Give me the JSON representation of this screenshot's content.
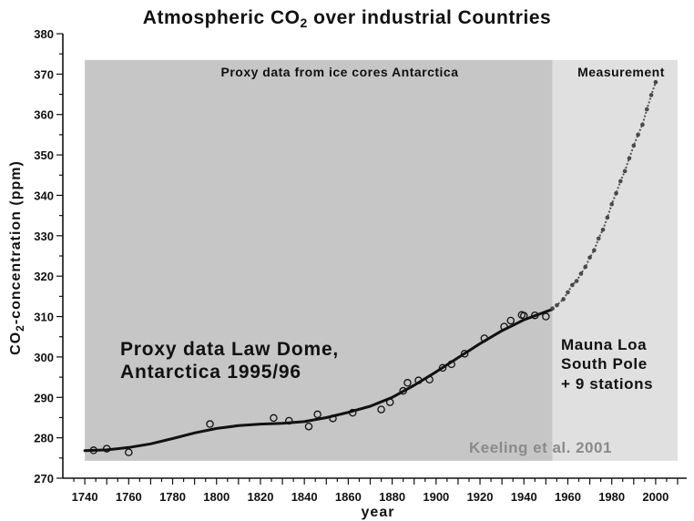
{
  "chart_data": {
    "type": "scatter",
    "title": "Atmospheric CO2 over industrial Countries",
    "xlabel": "year",
    "ylabel": "CO2-concentration (ppm)",
    "xlim": [
      1730,
      2010
    ],
    "ylim": [
      270,
      380
    ],
    "xticks": [
      1740,
      1760,
      1780,
      1800,
      1820,
      1840,
      1860,
      1880,
      1900,
      1920,
      1940,
      1960,
      1980,
      2000
    ],
    "yticks": [
      270,
      280,
      290,
      300,
      310,
      320,
      330,
      340,
      350,
      360,
      370,
      380
    ],
    "regions": [
      {
        "label": "Proxy data from ice cores Antarctica",
        "x_start": 1740,
        "x_end": 1953,
        "color": "#c6c6c6"
      },
      {
        "label": "Measurement",
        "x_start": 1953,
        "x_end": 2010,
        "color": "#e0e0e0"
      }
    ],
    "annotations": {
      "law_dome_line1": "Proxy data Law Dome,",
      "law_dome_line2": "Antarctica 1995/96",
      "mauna_line1": "Mauna Loa",
      "mauna_line2": "South Pole",
      "mauna_line3": "+ 9 stations",
      "source": "Keeling et al. 2001"
    },
    "series": [
      {
        "style": "smoothed-line",
        "x": [
          1740,
          1750,
          1760,
          1770,
          1780,
          1790,
          1800,
          1810,
          1820,
          1830,
          1840,
          1850,
          1860,
          1870,
          1880,
          1890,
          1900,
          1910,
          1920,
          1930,
          1940,
          1950,
          1953
        ],
        "y": [
          276.8,
          277.0,
          277.6,
          278.5,
          279.8,
          281.2,
          282.3,
          283.0,
          283.4,
          283.6,
          284.0,
          285.0,
          286.3,
          287.8,
          290.0,
          293.0,
          296.3,
          299.8,
          303.3,
          306.5,
          309.2,
          311.2,
          311.8
        ]
      },
      {
        "style": "ice-core-circles",
        "x": [
          1744,
          1750,
          1760,
          1797,
          1826,
          1833,
          1842,
          1846,
          1853,
          1862,
          1875,
          1879,
          1885,
          1887,
          1892,
          1897,
          1903,
          1907,
          1913,
          1922,
          1931,
          1934,
          1939,
          1940,
          1945,
          1950
        ],
        "y": [
          276.9,
          277.3,
          276.4,
          283.4,
          284.9,
          284.2,
          282.8,
          285.8,
          284.8,
          286.2,
          287.0,
          288.8,
          291.6,
          293.6,
          294.2,
          294.4,
          297.3,
          298.2,
          300.8,
          304.6,
          307.5,
          309.0,
          310.4,
          310.2,
          310.3,
          310.0
        ]
      },
      {
        "style": "measurement-dots",
        "x": [
          1953,
          1955,
          1958,
          1960,
          1962,
          1964,
          1966,
          1968,
          1970,
          1972,
          1974,
          1976,
          1978,
          1980,
          1982,
          1984,
          1986,
          1988,
          1990,
          1992,
          1994,
          1996,
          1998,
          2000
        ],
        "y": [
          312.0,
          312.8,
          314.3,
          316.0,
          317.8,
          318.8,
          320.6,
          322.3,
          324.6,
          326.4,
          329.3,
          331.5,
          334.5,
          337.8,
          340.5,
          343.5,
          346.0,
          349.2,
          352.3,
          355.0,
          357.5,
          361.3,
          364.8,
          368.0
        ]
      }
    ]
  }
}
